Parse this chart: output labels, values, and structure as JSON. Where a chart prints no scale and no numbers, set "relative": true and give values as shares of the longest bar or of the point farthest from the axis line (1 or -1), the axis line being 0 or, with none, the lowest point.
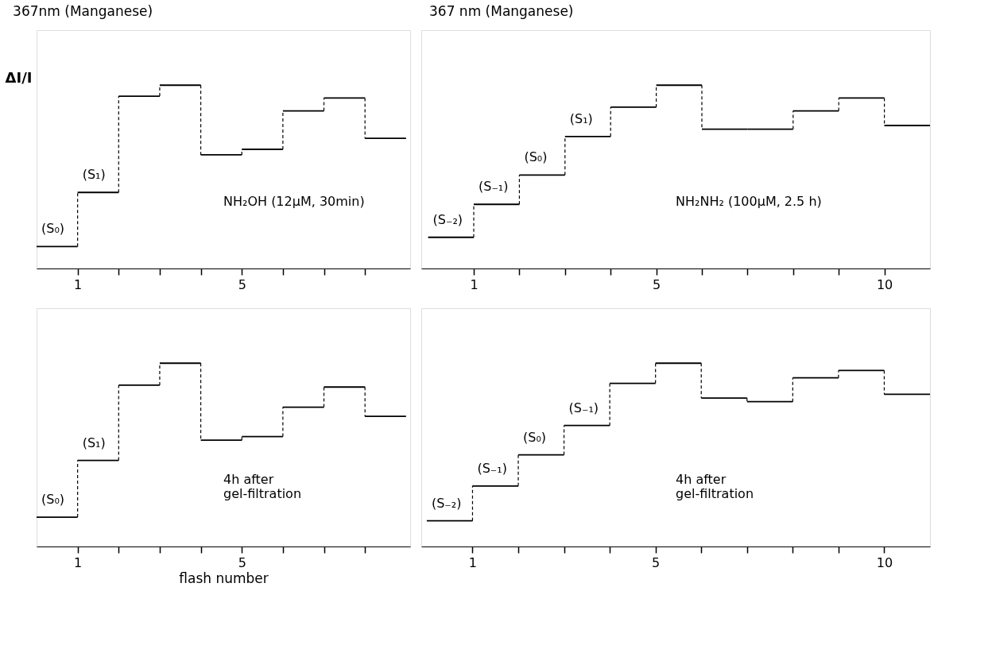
{
  "chart_data": [
    {
      "type": "step",
      "title": "367nm (Manganese)",
      "ylabel": "ΔI/I",
      "relative": true,
      "tick_labels": "x",
      "x": [
        0,
        1,
        2,
        3,
        4,
        5,
        6,
        7,
        8,
        9
      ],
      "series": [
        {
          "color": "#000000",
          "values": [
            0.12,
            0.415,
            0.94,
            1,
            0.62,
            0.65,
            0.86,
            0.93,
            0.71,
            0.71
          ]
        }
      ],
      "xlim": [
        0,
        9.1
      ],
      "xticks": [
        1,
        {
          "value": 2,
          "label": null
        },
        {
          "value": 3,
          "label": null
        },
        {
          "value": 4,
          "label": null
        },
        5,
        {
          "value": 6,
          "label": null
        },
        {
          "value": 7,
          "label": null
        },
        {
          "value": 8,
          "label": null
        }
      ],
      "annotations": [
        {
          "text": "(S₀)",
          "x": 0,
          "y": 0.12
        },
        {
          "text": "(S₁)",
          "x": 1,
          "y": 0.415
        },
        "NH₂OH (12µM, 30min)"
      ]
    },
    {
      "type": "step",
      "title": "367 nm    (Manganese)",
      "relative": true,
      "tick_labels": "x",
      "x": [
        0,
        1,
        2,
        3,
        4,
        5,
        6,
        7,
        8,
        9,
        10,
        11
      ],
      "series": [
        {
          "color": "#000000",
          "values": [
            0.17,
            0.35,
            0.51,
            0.72,
            0.88,
            1,
            0.76,
            0.76,
            0.86,
            0.93,
            0.78,
            0.78
          ]
        }
      ],
      "xlim": [
        -0.15,
        11
      ],
      "xticks": [
        1,
        {
          "value": 2,
          "label": null
        },
        {
          "value": 3,
          "label": null
        },
        {
          "value": 4,
          "label": null
        },
        5,
        {
          "value": 6,
          "label": null
        },
        {
          "value": 7,
          "label": null
        },
        {
          "value": 8,
          "label": null
        },
        {
          "value": 9,
          "label": null
        },
        10
      ],
      "annotations": [
        {
          "text": "(S₋₂)",
          "x": 0,
          "y": 0.17
        },
        {
          "text": "(S₋₁)",
          "x": 1,
          "y": 0.35
        },
        {
          "text": "(S₀)",
          "x": 2,
          "y": 0.51
        },
        {
          "text": "(S₁)",
          "x": 3,
          "y": 0.72
        },
        "NH₂NH₂ (100µM, 2.5 h)"
      ]
    },
    {
      "type": "step",
      "xlabel": "flash number",
      "relative": true,
      "tick_labels": "x",
      "x": [
        0,
        1,
        2,
        3,
        4,
        5,
        6,
        7,
        8,
        9
      ],
      "series": [
        {
          "color": "#000000",
          "values": [
            0.16,
            0.47,
            0.88,
            1,
            0.58,
            0.6,
            0.76,
            0.87,
            0.71,
            0.71
          ]
        }
      ],
      "xlim": [
        0,
        9.1
      ],
      "xticks": [
        1,
        {
          "value": 2,
          "label": null
        },
        {
          "value": 3,
          "label": null
        },
        {
          "value": 4,
          "label": null
        },
        5,
        {
          "value": 6,
          "label": null
        },
        {
          "value": 7,
          "label": null
        },
        {
          "value": 8,
          "label": null
        }
      ],
      "annotations": [
        {
          "text": "(S₀)",
          "x": 0,
          "y": 0.16
        },
        {
          "text": "(S₁)",
          "x": 1,
          "y": 0.47
        },
        "4h after\ngel-filtration"
      ]
    },
    {
      "type": "step",
      "relative": true,
      "tick_labels": "x",
      "x": [
        0,
        1,
        2,
        3,
        4,
        5,
        6,
        7,
        8,
        9,
        10,
        11
      ],
      "series": [
        {
          "color": "#000000",
          "values": [
            0.14,
            0.33,
            0.5,
            0.66,
            0.89,
            1,
            0.81,
            0.79,
            0.92,
            0.96,
            0.83,
            0.83
          ]
        }
      ],
      "xlim": [
        -0.12,
        11
      ],
      "xticks": [
        1,
        {
          "value": 2,
          "label": null
        },
        {
          "value": 3,
          "label": null
        },
        {
          "value": 4,
          "label": null
        },
        5,
        {
          "value": 6,
          "label": null
        },
        {
          "value": 7,
          "label": null
        },
        {
          "value": 8,
          "label": null
        },
        {
          "value": 9,
          "label": null
        },
        10
      ],
      "annotations": [
        {
          "text": "(S₋₂)",
          "x": 0,
          "y": 0.14
        },
        {
          "text": "(S₋₁)",
          "x": 1,
          "y": 0.33
        },
        {
          "text": "(S₀)",
          "x": 2,
          "y": 0.5
        },
        {
          "text": "(S₋₁)",
          "x": 3,
          "y": 0.66
        },
        "4h after\ngel-filtration"
      ]
    }
  ]
}
